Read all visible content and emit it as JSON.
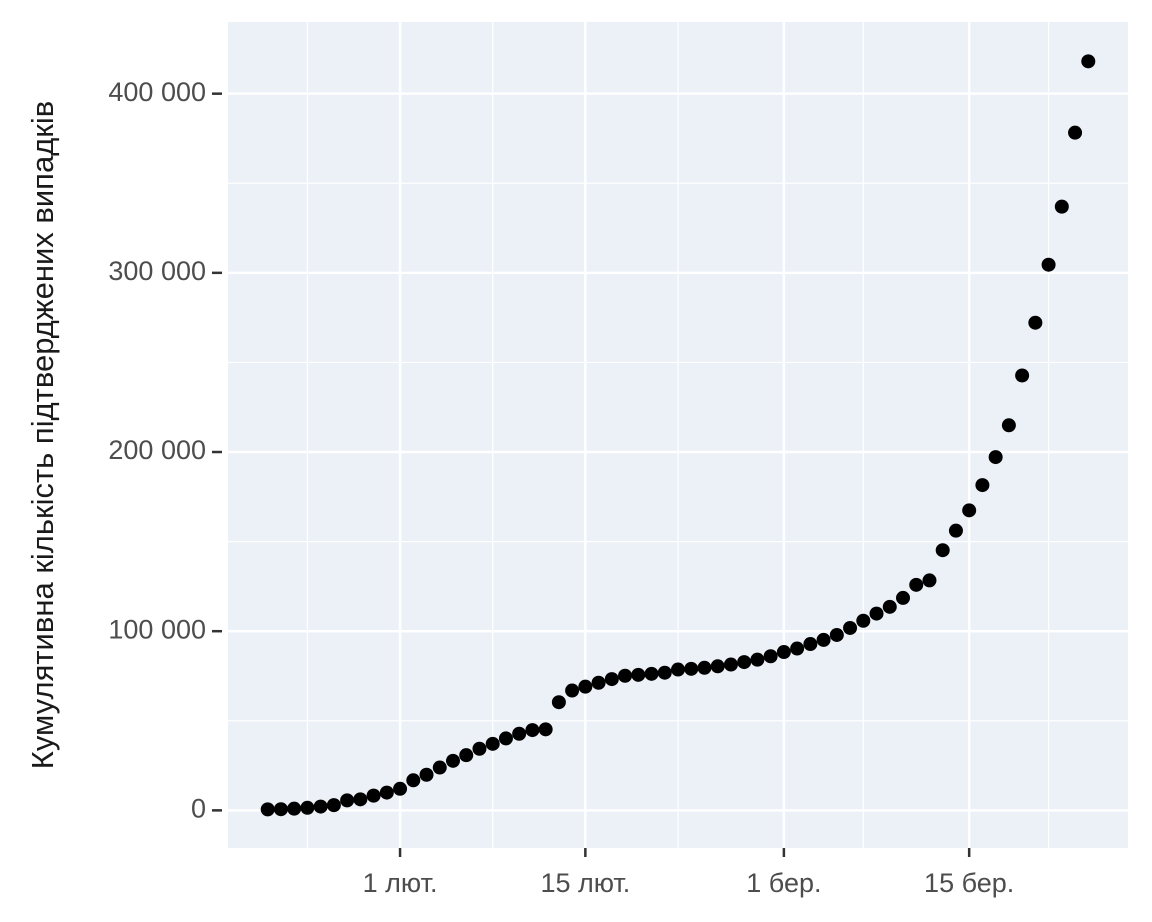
{
  "chart_data": {
    "type": "scatter",
    "y_label": "Кумулятивна кількість підтверджених випадків",
    "x": [
      "01-22",
      "01-23",
      "01-24",
      "01-25",
      "01-26",
      "01-27",
      "01-28",
      "01-29",
      "01-30",
      "01-31",
      "02-01",
      "02-02",
      "02-03",
      "02-04",
      "02-05",
      "02-06",
      "02-07",
      "02-08",
      "02-09",
      "02-10",
      "02-11",
      "02-12",
      "02-13",
      "02-14",
      "02-15",
      "02-16",
      "02-17",
      "02-18",
      "02-19",
      "02-20",
      "02-21",
      "02-22",
      "02-23",
      "02-24",
      "02-25",
      "02-26",
      "02-27",
      "02-28",
      "02-29",
      "03-01",
      "03-02",
      "03-03",
      "03-04",
      "03-05",
      "03-06",
      "03-07",
      "03-08",
      "03-09",
      "03-10",
      "03-11",
      "03-12",
      "03-13",
      "03-14",
      "03-15",
      "03-16",
      "03-17",
      "03-18",
      "03-19",
      "03-20",
      "03-21",
      "03-22",
      "03-23",
      "03-24"
    ],
    "values": [
      555,
      654,
      941,
      1434,
      2118,
      2927,
      5578,
      6166,
      8234,
      9927,
      12038,
      16787,
      19887,
      23898,
      27643,
      30802,
      34395,
      37129,
      40160,
      42769,
      44811,
      45222,
      60370,
      66887,
      69032,
      71226,
      73260,
      75138,
      75641,
      76199,
      76843,
      78599,
      78985,
      79570,
      80415,
      81397,
      82756,
      84124,
      86013,
      88371,
      90309,
      92844,
      95124,
      97886,
      101800,
      105836,
      109835,
      113582,
      118582,
      125865,
      128343,
      145193,
      156097,
      167449,
      181546,
      197168,
      214915,
      242713,
      272167,
      304528,
      336953,
      378235,
      418045
    ],
    "color": "#000000",
    "xlim": [
      "01-19",
      "03-27"
    ],
    "xticks": [
      {
        "value": "02-01",
        "label": "1 лют."
      },
      {
        "value": "02-15",
        "label": "15 лют."
      },
      {
        "value": "03-01",
        "label": "1 бер."
      },
      {
        "value": "03-15",
        "label": "15 бер."
      }
    ],
    "ylim": [
      -21000,
      440000
    ],
    "yticks": [
      {
        "value": 0,
        "label": "0"
      },
      {
        "value": 100000,
        "label": "100 000"
      },
      {
        "value": 200000,
        "label": "200 000"
      },
      {
        "value": 300000,
        "label": "300 000"
      },
      {
        "value": 400000,
        "label": "400 000"
      }
    ],
    "grid": true
  }
}
